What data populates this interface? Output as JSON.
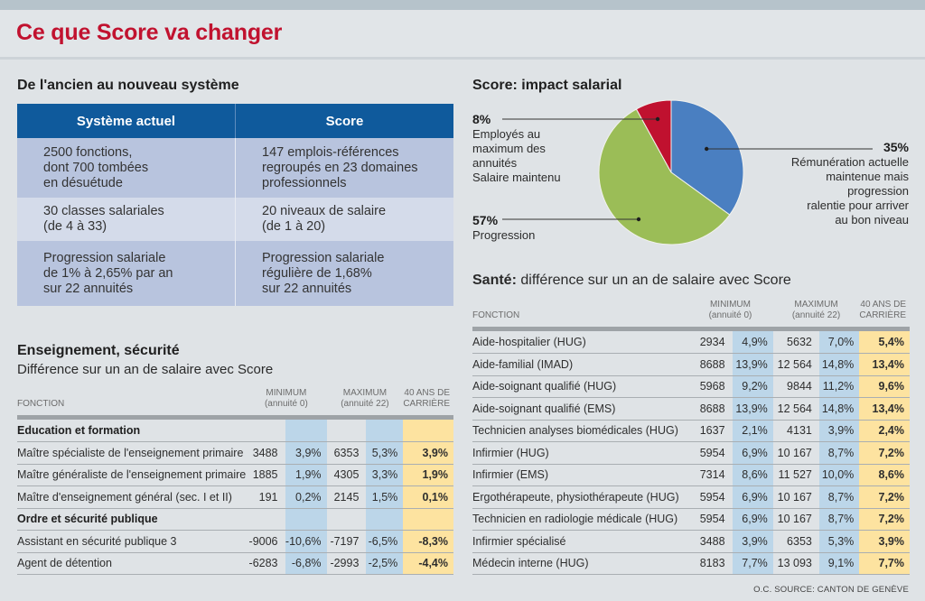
{
  "title": "Ce que Score va changer",
  "comparison": {
    "heading": "De l'ancien au nouveau système",
    "columns": [
      "Système actuel",
      "Score"
    ],
    "rows": [
      [
        [
          "2500 fonctions,",
          "dont 700 tombées",
          "en désuétude"
        ],
        [
          "147 emplois-références",
          "regroupés en 23 domaines",
          "professionnels"
        ]
      ],
      [
        [
          "30 classes salariales",
          "(de 4 à 33)"
        ],
        [
          "20 niveaux de salaire",
          "(de 1 à 20)"
        ]
      ],
      [
        [
          "Progression salariale",
          "de 1% à 2,65% par an",
          "sur 22 annuités"
        ],
        [
          "Progression salariale",
          "régulière de 1,68%",
          "sur 22 annuités"
        ]
      ]
    ]
  },
  "chart_data": [
    {
      "type": "pie",
      "title": "Score: impact salarial",
      "slices": [
        {
          "label": "Rémunération actuelle maintenue mais progression ralentie pour arriver au bon niveau",
          "value": 35,
          "display": "35%",
          "color": "#4a7fc1"
        },
        {
          "label": "Progression",
          "value": 57,
          "display": "57%",
          "color": "#9bbd57"
        },
        {
          "label": "Employés au maximum des annuités Salaire maintenu",
          "value": 8,
          "display": "8%",
          "color": "#c0112f"
        }
      ],
      "label_lines": {
        "s35": [
          "Rémunération actuelle",
          "maintenue mais",
          "progression",
          "ralentie pour arriver",
          "au bon niveau"
        ],
        "s57": [
          "Progression"
        ],
        "s8": [
          "Employés au",
          "maximum des",
          "annuités",
          "Salaire maintenu"
        ]
      }
    },
    {
      "type": "table",
      "title": "Enseignement, sécurité",
      "subtitle": "Différence sur un an de salaire avec Score",
      "headers": {
        "fonction": "FONCTION",
        "min": [
          "MINIMUM",
          "(annuité 0)"
        ],
        "max": [
          "MAXIMUM",
          "(annuité 22)"
        ],
        "career": [
          "40 ANS DE",
          "CARRIÈRE"
        ]
      },
      "rows": [
        {
          "group": "Education et formation"
        },
        {
          "fonction": "Maître spécialiste de l'enseignement primaire",
          "min": "3488",
          "min_pct": "3,9%",
          "max": "6353",
          "max_pct": "5,3%",
          "career": "3,9%"
        },
        {
          "fonction": "Maître généraliste de l'enseignement primaire",
          "min": "1885",
          "min_pct": "1,9%",
          "max": "4305",
          "max_pct": "3,3%",
          "career": "1,9%"
        },
        {
          "fonction": "Maître d'enseignement général (sec. I et II)",
          "min": "191",
          "min_pct": "0,2%",
          "max": "2145",
          "max_pct": "1,5%",
          "career": "0,1%"
        },
        {
          "group": "Ordre et sécurité publique"
        },
        {
          "fonction": "Assistant en sécurité publique 3",
          "min": "-9006",
          "min_pct": "-10,6%",
          "max": "-7197",
          "max_pct": "-6,5%",
          "career": "-8,3%"
        },
        {
          "fonction": "Agent de détention",
          "min": "-6283",
          "min_pct": "-6,8%",
          "max": "-2993",
          "max_pct": "-2,5%",
          "career": "-4,4%"
        }
      ]
    },
    {
      "type": "table",
      "title": "Santé:",
      "subtitle": "différence sur un an de salaire avec Score",
      "headers": {
        "fonction": "FONCTION",
        "min": [
          "MINIMUM",
          "(annuité 0)"
        ],
        "max": [
          "MAXIMUM",
          "(annuité 22)"
        ],
        "career": [
          "40 ANS DE",
          "CARRIÈRE"
        ]
      },
      "rows": [
        {
          "fonction": "Aide-hospitalier (HUG)",
          "min": "2934",
          "min_pct": "4,9%",
          "max": "5632",
          "max_pct": "7,0%",
          "career": "5,4%"
        },
        {
          "fonction": "Aide-familial (IMAD)",
          "min": "8688",
          "min_pct": "13,9%",
          "max": "12 564",
          "max_pct": "14,8%",
          "career": "13,4%"
        },
        {
          "fonction": "Aide-soignant qualifié (HUG)",
          "min": "5968",
          "min_pct": "9,2%",
          "max": "9844",
          "max_pct": "11,2%",
          "career": "9,6%"
        },
        {
          "fonction": "Aide-soignant qualifié (EMS)",
          "min": "8688",
          "min_pct": "13,9%",
          "max": "12 564",
          "max_pct": "14,8%",
          "career": "13,4%"
        },
        {
          "fonction": "Technicien analyses biomédicales (HUG)",
          "min": "1637",
          "min_pct": "2,1%",
          "max": "4131",
          "max_pct": "3,9%",
          "career": "2,4%"
        },
        {
          "fonction": "Infirmier (HUG)",
          "min": "5954",
          "min_pct": "6,9%",
          "max": "10 167",
          "max_pct": "8,7%",
          "career": "7,2%"
        },
        {
          "fonction": "Infirmier (EMS)",
          "min": "7314",
          "min_pct": "8,6%",
          "max": "11 527",
          "max_pct": "10,0%",
          "career": "8,6%"
        },
        {
          "fonction": "Ergothérapeute, physiothérapeute (HUG)",
          "min": "5954",
          "min_pct": "6,9%",
          "max": "10 167",
          "max_pct": "8,7%",
          "career": "7,2%"
        },
        {
          "fonction": "Technicien en radiologie médicale (HUG)",
          "min": "5954",
          "min_pct": "6,9%",
          "max": "10 167",
          "max_pct": "8,7%",
          "career": "7,2%"
        },
        {
          "fonction": "Infirmier spécialisé",
          "min": "3488",
          "min_pct": "3,9%",
          "max": "6353",
          "max_pct": "5,3%",
          "career": "3,9%"
        },
        {
          "fonction": "Médecin interne (HUG)",
          "min": "8183",
          "min_pct": "7,7%",
          "max": "13 093",
          "max_pct": "9,1%",
          "career": "7,7%"
        }
      ]
    }
  ],
  "source": "O.C.  SOURCE: CANTON DE GENÈVE"
}
